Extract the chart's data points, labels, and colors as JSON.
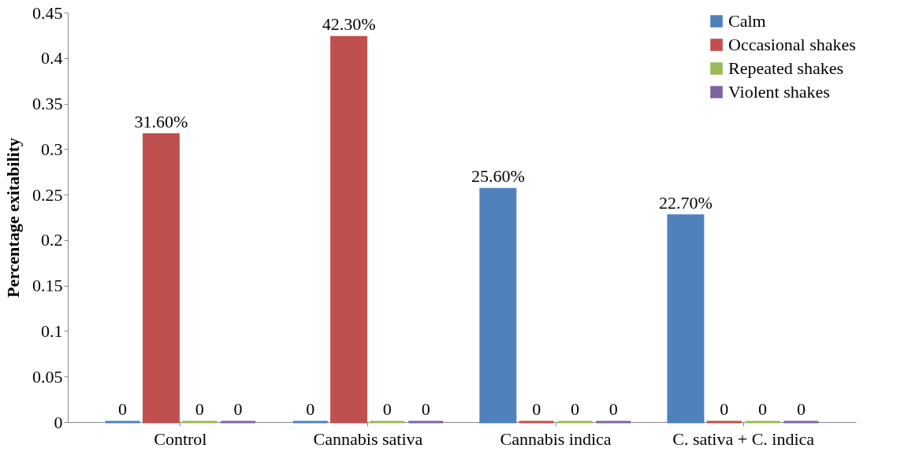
{
  "chart_data": {
    "type": "bar",
    "ylabel": "Percentage exitability",
    "categories": [
      "Control",
      "Cannabis sativa",
      "Cannabis indica",
      "C. sativa + C. indica"
    ],
    "series": [
      {
        "name": "Calm",
        "color": "#4f81bd",
        "values": [
          0,
          0,
          0.256,
          0.227
        ],
        "value_labels": [
          "0",
          "0",
          "25.60%",
          "22.70%"
        ]
      },
      {
        "name": "Occasional shakes",
        "color": "#c0504d",
        "values": [
          0.316,
          0.423,
          0,
          0
        ],
        "value_labels": [
          "31.60%",
          "42.30%",
          "0",
          "0"
        ]
      },
      {
        "name": "Repeated shakes",
        "color": "#9bbb59",
        "values": [
          0,
          0,
          0,
          0
        ],
        "value_labels": [
          "0",
          "0",
          "0",
          "0"
        ]
      },
      {
        "name": "Violent shakes",
        "color": "#8064a2",
        "values": [
          0,
          0,
          0,
          0
        ],
        "value_labels": [
          "0",
          "0",
          "0",
          "0"
        ]
      }
    ],
    "ylim": [
      0,
      0.45
    ],
    "yticks": [
      0,
      0.05,
      0.1,
      0.15,
      0.2,
      0.25,
      0.3,
      0.35,
      0.4,
      0.45
    ],
    "grid": false,
    "legend": "top right"
  }
}
